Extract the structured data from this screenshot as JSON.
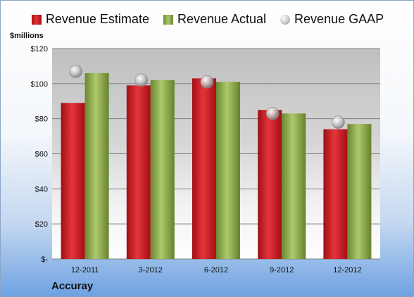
{
  "company": "Accuray",
  "chart_data": {
    "type": "bar",
    "y_unit_label": "$millions",
    "categories": [
      "12-2011",
      "3-2012",
      "6-2012",
      "9-2012",
      "12-2012"
    ],
    "series": [
      {
        "name": "Revenue Estimate",
        "values": [
          89,
          99,
          103,
          85,
          74
        ],
        "color": "#d1232a"
      },
      {
        "name": "Revenue Actual",
        "values": [
          106,
          102,
          101,
          83,
          77
        ],
        "color": "#8fae4a"
      },
      {
        "name": "Revenue GAAP",
        "values": [
          107,
          102,
          101,
          83,
          78
        ],
        "color": "#b8b8b8",
        "marker": "circle"
      }
    ],
    "ylim": [
      0,
      120
    ],
    "y_ticks": [
      0,
      20,
      40,
      60,
      80,
      100,
      120
    ],
    "y_tick_labels": [
      "$-",
      "$20",
      "$40",
      "$60",
      "$80",
      "$100",
      "$120"
    ],
    "grid": true,
    "legend_position": "top"
  }
}
